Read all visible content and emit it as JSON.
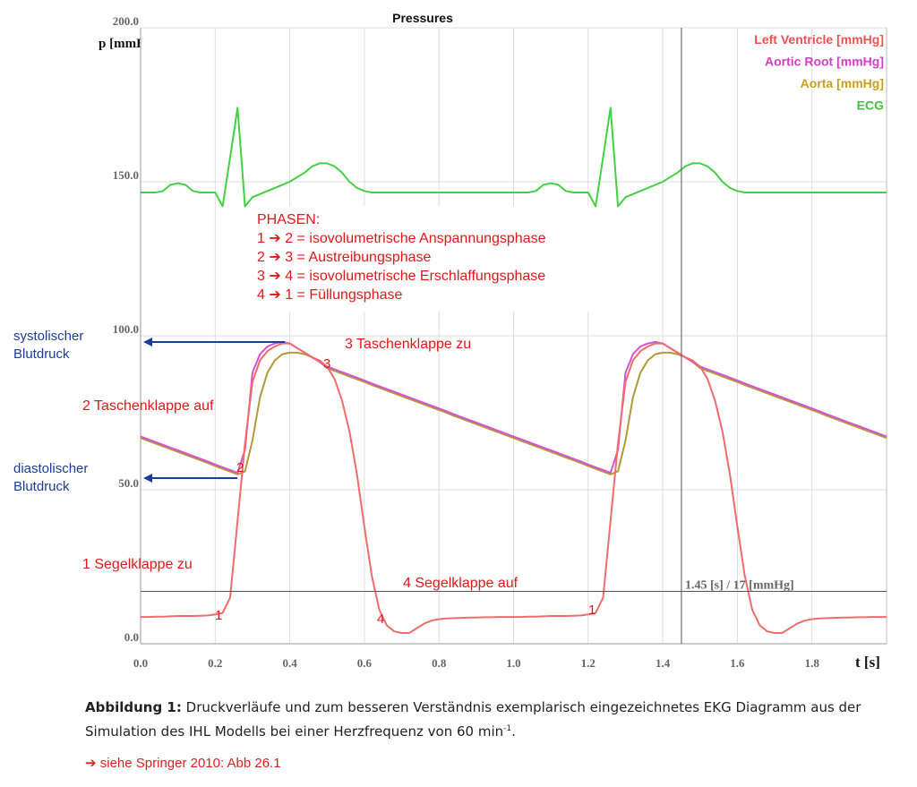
{
  "chart_data": {
    "type": "line",
    "title": "Pressures",
    "y_label": "p [mmHg]",
    "x_label": "t [s]",
    "xlim": [
      0,
      2
    ],
    "ylim": [
      0,
      200
    ],
    "xticks": [
      {
        "value": 0,
        "label": "0.0"
      },
      0.2,
      0.4,
      0.6,
      0.8,
      {
        "value": 1,
        "label": "1.0"
      },
      1.2,
      1.4,
      1.6,
      1.8
    ],
    "yticks": [
      {
        "value": 0,
        "label": "0.0"
      },
      {
        "value": 50,
        "label": "50.0"
      },
      {
        "value": 100,
        "label": "100.0"
      },
      {
        "value": 150,
        "label": "150.0"
      },
      {
        "value": 200,
        "label": "200.0"
      }
    ],
    "grid": true,
    "x": [
      0,
      0.02,
      0.04,
      0.06,
      0.08,
      0.1,
      0.12,
      0.14,
      0.16,
      0.18,
      0.2,
      0.22,
      0.24,
      0.26,
      0.28,
      0.3,
      0.32,
      0.34,
      0.36,
      0.38,
      0.4,
      0.42,
      0.44,
      0.46,
      0.48,
      0.5,
      0.52,
      0.54,
      0.56,
      0.58,
      0.6,
      0.62,
      0.64,
      0.66,
      0.68,
      0.7,
      0.72,
      0.74,
      0.76,
      0.78,
      0.8,
      0.82,
      0.84,
      0.86,
      0.88,
      0.9,
      0.92,
      0.94,
      0.96,
      0.98,
      1,
      1.02,
      1.04,
      1.06,
      1.08,
      1.1,
      1.12,
      1.14,
      1.16,
      1.18,
      1.2,
      1.22,
      1.24,
      1.26,
      1.28,
      1.3,
      1.32,
      1.34,
      1.36,
      1.38,
      1.4,
      1.42,
      1.44,
      1.46,
      1.48,
      1.5,
      1.52,
      1.54,
      1.56,
      1.58,
      1.6,
      1.62,
      1.64,
      1.66,
      1.68,
      1.7,
      1.72,
      1.74,
      1.76,
      1.78,
      1.8,
      1.82,
      1.84,
      1.86,
      1.88,
      1.9,
      1.92,
      1.94,
      1.96,
      1.98,
      2
    ],
    "series": [
      {
        "name": "Left Ventricle [mmHg]",
        "color": "#f06b6b",
        "legend_color": "#f05050",
        "values": [
          8.7,
          8.7,
          8.8,
          8.8,
          8.9,
          9,
          9,
          9,
          9.1,
          9.2,
          9.5,
          10,
          15,
          40,
          65,
          85,
          92,
          95,
          96.5,
          97.5,
          97.5,
          96,
          94.5,
          93,
          92,
          90,
          86,
          79,
          69,
          55,
          38,
          22,
          11,
          6,
          4,
          3.5,
          3.5,
          5,
          6.5,
          7.5,
          8,
          8.2,
          8.3,
          8.4,
          8.5,
          8.5,
          8.6,
          8.6,
          8.7,
          8.7,
          8.7,
          8.7,
          8.8,
          8.8,
          8.9,
          9,
          9,
          9,
          9.1,
          9.2,
          9.5,
          10,
          15,
          40,
          65,
          85,
          92,
          95,
          96.5,
          97.5,
          97.5,
          96,
          94.5,
          93,
          92,
          90,
          86,
          79,
          69,
          55,
          38,
          22,
          11,
          6,
          4,
          3.5,
          3.5,
          5,
          6.5,
          7.5,
          8,
          8.2,
          8.3,
          8.4,
          8.5,
          8.5,
          8.6,
          8.6,
          8.7,
          8.7,
          8.7
        ]
      },
      {
        "name": "Aortic Root [mmHg]",
        "color": "#d552d5",
        "legend_color": "#d040c0",
        "values": [
          67.3,
          66.4,
          65.5,
          64.6,
          63.7,
          62.8,
          61.9,
          61,
          60.1,
          59.2,
          58.2,
          57.3,
          56.4,
          55.5,
          63,
          88,
          94,
          96.5,
          97.5,
          98,
          97.5,
          96,
          94.5,
          93,
          91.5,
          90,
          89.1,
          88.2,
          87.3,
          86.4,
          85.5,
          84.5,
          83.6,
          82.7,
          81.8,
          80.9,
          80,
          79.1,
          78.2,
          77.3,
          76.4,
          75.5,
          74.5,
          73.6,
          72.7,
          71.8,
          70.9,
          70,
          69.1,
          68.2,
          67.3,
          66.4,
          65.5,
          64.6,
          63.7,
          62.8,
          61.9,
          61,
          60.1,
          59.2,
          58.2,
          57.3,
          56.4,
          55.5,
          63,
          88,
          94,
          96.5,
          97.5,
          98,
          97.5,
          96,
          94.5,
          93,
          91.5,
          90,
          89.1,
          88.2,
          87.3,
          86.4,
          85.5,
          84.5,
          83.6,
          82.7,
          81.8,
          80.9,
          80,
          79.1,
          78.2,
          77.3,
          76.4,
          75.5,
          74.5,
          73.6,
          72.7,
          71.8,
          70.9,
          70,
          69.1,
          68.2,
          67.3
        ]
      },
      {
        "name": "Aorta [mmHg]",
        "color": "#b09a35",
        "legend_color": "#c8a020",
        "values": [
          66.8,
          65.9,
          65,
          64.1,
          63.2,
          62.3,
          61.4,
          60.5,
          59.6,
          58.7,
          57.7,
          56.8,
          55.9,
          55,
          56,
          66,
          80,
          88,
          92,
          94,
          94.5,
          94.5,
          94,
          93,
          91.5,
          89.5,
          88.6,
          87.7,
          86.8,
          85.9,
          85,
          84,
          83.1,
          82.2,
          81.3,
          80.4,
          79.5,
          78.6,
          77.7,
          76.8,
          75.9,
          75,
          74,
          73.1,
          72.2,
          71.3,
          70.4,
          69.5,
          68.6,
          67.7,
          66.8,
          65.9,
          65,
          64.1,
          63.2,
          62.3,
          61.4,
          60.5,
          59.6,
          58.7,
          57.7,
          56.8,
          55.9,
          55,
          56,
          66,
          80,
          88,
          92,
          94,
          94.5,
          94.5,
          94,
          93,
          91.5,
          89.5,
          88.6,
          87.7,
          86.8,
          85.9,
          85,
          84,
          83.1,
          82.2,
          81.3,
          80.4,
          79.5,
          78.6,
          77.7,
          76.8,
          75.9,
          75,
          74,
          73.1,
          72.2,
          71.3,
          70.4,
          69.5,
          68.6,
          67.7,
          66.8
        ]
      },
      {
        "name": "ECG",
        "color": "#44d044",
        "legend_color": "#40c040",
        "values": [
          146.5,
          146.5,
          146.5,
          147,
          149,
          149.5,
          149,
          147,
          146.5,
          146.5,
          146.5,
          142,
          158,
          174,
          142,
          145,
          146,
          147,
          148,
          149,
          150,
          151.5,
          153,
          155,
          156,
          156,
          155,
          153,
          150,
          148,
          147,
          146.5,
          146.5,
          146.5,
          146.5,
          146.5,
          146.5,
          146.5,
          146.5,
          146.5,
          146.5,
          146.5,
          146.5,
          146.5,
          146.5,
          146.5,
          146.5,
          146.5,
          146.5,
          146.5,
          146.5,
          146.5,
          146.5,
          147,
          149,
          149.5,
          149,
          147,
          146.5,
          146.5,
          146.5,
          142,
          158,
          174,
          142,
          145,
          146,
          147,
          148,
          149,
          150,
          151.5,
          153,
          155,
          156,
          156,
          155,
          153,
          150,
          148,
          147,
          146.5,
          146.5,
          146.5,
          146.5,
          146.5,
          146.5,
          146.5,
          146.5,
          146.5,
          146.5,
          146.5,
          146.5,
          146.5,
          146.5,
          146.5,
          146.5,
          146.5,
          146.5,
          146.5,
          146.5
        ]
      }
    ],
    "cursor": {
      "x": 1.45,
      "y": 17,
      "label": "1.45 [s] / 17 [mmHg]"
    },
    "phases": {
      "title": "PHASEN:",
      "lines": [
        "1 ➔ 2 = isovolumetrische Anspannungsphase",
        "2 ➔ 3 = Austreibungsphase",
        "3 ➔ 4 = isovolumetrische Erschlaffungsphase",
        "4 ➔ 1 = Füllungsphase"
      ]
    },
    "annotations": [
      "3 Taschenklappe zu",
      "2 Taschenklappe auf",
      "1 Segelklappe zu",
      "4 Segelklappe auf"
    ],
    "pressure_labels": [
      [
        "systolischer",
        "Blutdruck"
      ],
      [
        "diastolischer",
        "Blutdruck"
      ]
    ],
    "point_labels": [
      "1",
      "2",
      "3",
      "4",
      "1"
    ]
  },
  "figure_caption": {
    "label": "Abbildung 1:",
    "text": "Druckverläufe und zum besseren Verständnis exemplarisch eingezeichnetes EKG Diagramm aus der Simulation des IHL Modells bei einer Herzfrequenz von 60 min",
    "superscript": "-1",
    "text_end": "."
  },
  "reference": "➔ siehe Springer 2010: Abb 26.1"
}
